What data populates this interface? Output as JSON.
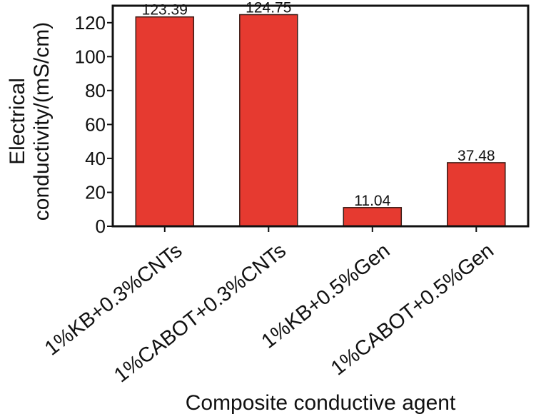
{
  "chart_data": {
    "type": "bar",
    "title": "",
    "categories": [
      "1%KB+0.3%CNTs",
      "1%CABOT+0.3%CNTs",
      "1%KB+0.5%Gen",
      "1%CABOT+0.5%Gen"
    ],
    "values": [
      123.39,
      124.75,
      11.04,
      37.48
    ],
    "value_labels": [
      "123.39",
      "124.75",
      "11.04",
      "37.48"
    ],
    "xlabel": "Composite conductive agent",
    "ylabel_lines": [
      "Electrical",
      "conductivity/(mS/cm)"
    ],
    "ylim": [
      0,
      130
    ],
    "yticks": [
      0,
      20,
      40,
      60,
      80,
      100,
      120
    ],
    "grid": false,
    "bar_color": "#e63a30",
    "bar_edge_color": "#3a1a14"
  }
}
